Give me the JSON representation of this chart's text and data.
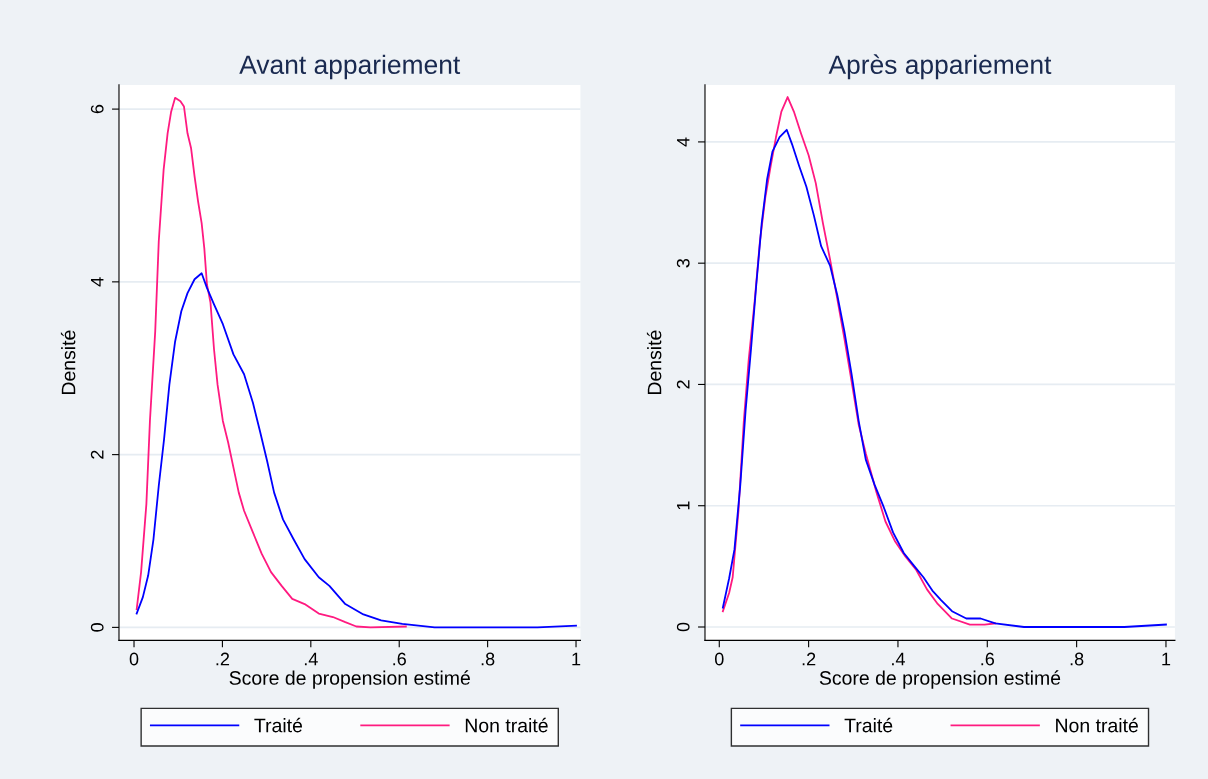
{
  "chart_data": [
    {
      "type": "line",
      "title": "Avant appariement",
      "xlabel": "Score de propension estimé",
      "ylabel": "Densité",
      "xlim": [
        -0.034,
        1.01
      ],
      "ylim": [
        -0.15,
        6.28
      ],
      "xticks": [
        0,
        {
          "value": 0.2,
          "label": ".2"
        },
        {
          "value": 0.4,
          "label": ".4"
        },
        {
          "value": 0.6,
          "label": ".6"
        },
        {
          "value": 0.8,
          "label": ".8"
        },
        1
      ],
      "yticks": [
        0,
        2,
        4,
        6
      ],
      "grid": "y",
      "legend": "bottom",
      "line_style": "solid",
      "marker": "none",
      "series": [
        {
          "name": "Traité",
          "color": "#0000ff",
          "x": [
            0.006,
            0.02,
            0.032,
            0.044,
            0.056,
            0.068,
            0.08,
            0.093,
            0.107,
            0.121,
            0.137,
            0.153,
            0.165,
            0.181,
            0.201,
            0.225,
            0.249,
            0.269,
            0.285,
            0.301,
            0.317,
            0.337,
            0.361,
            0.386,
            0.418,
            0.442,
            0.478,
            0.519,
            0.559,
            0.607,
            0.68,
            0.808,
            0.913,
            1.0
          ],
          "values": [
            0.16,
            0.35,
            0.6,
            1.02,
            1.64,
            2.18,
            2.81,
            3.31,
            3.66,
            3.87,
            4.03,
            4.1,
            3.93,
            3.74,
            3.51,
            3.16,
            2.93,
            2.6,
            2.27,
            1.93,
            1.56,
            1.25,
            1.02,
            0.79,
            0.58,
            0.48,
            0.27,
            0.15,
            0.08,
            0.04,
            0,
            0,
            0,
            0.02
          ]
        },
        {
          "name": "Non traité",
          "color": "#ff1a80",
          "x": [
            0.006,
            0.016,
            0.028,
            0.036,
            0.048,
            0.056,
            0.067,
            0.076,
            0.084,
            0.093,
            0.105,
            0.113,
            0.121,
            0.129,
            0.137,
            0.145,
            0.153,
            0.159,
            0.165,
            0.173,
            0.181,
            0.189,
            0.201,
            0.213,
            0.225,
            0.237,
            0.249,
            0.269,
            0.289,
            0.31,
            0.334,
            0.358,
            0.386,
            0.418,
            0.45,
            0.478,
            0.503,
            0.535,
            0.615
          ],
          "values": [
            0.21,
            0.64,
            1.43,
            2.39,
            3.43,
            4.47,
            5.3,
            5.72,
            5.97,
            6.13,
            6.09,
            6.03,
            5.72,
            5.55,
            5.22,
            4.93,
            4.68,
            4.39,
            3.97,
            3.76,
            3.22,
            2.81,
            2.39,
            2.14,
            1.85,
            1.56,
            1.35,
            1.1,
            0.85,
            0.64,
            0.48,
            0.33,
            0.27,
            0.16,
            0.12,
            0.06,
            0.01,
            0,
            0.01
          ]
        }
      ]
    },
    {
      "type": "line",
      "title": "Après appariement",
      "xlabel": "Score de propension estimé",
      "ylabel": "Densité",
      "xlim": [
        -0.032,
        1.02
      ],
      "ylim": [
        -0.11,
        4.47
      ],
      "xticks": [
        0,
        {
          "value": 0.2,
          "label": ".2"
        },
        {
          "value": 0.4,
          "label": ".4"
        },
        {
          "value": 0.6,
          "label": ".6"
        },
        {
          "value": 0.8,
          "label": ".8"
        },
        1
      ],
      "yticks": [
        0,
        1,
        2,
        3,
        4
      ],
      "grid": "y",
      "legend": "bottom",
      "line_style": "solid",
      "marker": "none",
      "series": [
        {
          "name": "Traité",
          "color": "#0000ff",
          "x": [
            0.008,
            0.022,
            0.034,
            0.047,
            0.059,
            0.071,
            0.083,
            0.095,
            0.107,
            0.119,
            0.135,
            0.151,
            0.163,
            0.179,
            0.195,
            0.212,
            0.228,
            0.248,
            0.264,
            0.28,
            0.296,
            0.312,
            0.328,
            0.348,
            0.368,
            0.389,
            0.413,
            0.437,
            0.457,
            0.477,
            0.497,
            0.521,
            0.553,
            0.585,
            0.618,
            0.682,
            0.819,
            0.907,
            1.0
          ],
          "values": [
            0.16,
            0.4,
            0.64,
            1.17,
            1.79,
            2.29,
            2.83,
            3.33,
            3.69,
            3.92,
            4.04,
            4.1,
            3.98,
            3.8,
            3.63,
            3.39,
            3.14,
            2.98,
            2.74,
            2.44,
            2.09,
            1.7,
            1.38,
            1.17,
            0.99,
            0.78,
            0.61,
            0.5,
            0.41,
            0.3,
            0.22,
            0.13,
            0.07,
            0.07,
            0.03,
            0,
            0,
            0,
            0.02
          ]
        },
        {
          "name": "Non traité",
          "color": "#ff1a80",
          "x": [
            0.008,
            0.022,
            0.03,
            0.043,
            0.055,
            0.066,
            0.079,
            0.091,
            0.103,
            0.115,
            0.127,
            0.139,
            0.153,
            0.167,
            0.183,
            0.2,
            0.216,
            0.232,
            0.248,
            0.264,
            0.28,
            0.296,
            0.312,
            0.328,
            0.352,
            0.372,
            0.393,
            0.417,
            0.441,
            0.465,
            0.489,
            0.521,
            0.561,
            0.594,
            0.618
          ],
          "values": [
            0.13,
            0.28,
            0.41,
            0.96,
            1.7,
            2.21,
            2.68,
            3.18,
            3.54,
            3.8,
            4.04,
            4.25,
            4.37,
            4.25,
            4.07,
            3.89,
            3.66,
            3.33,
            3.03,
            2.71,
            2.38,
            2.03,
            1.67,
            1.43,
            1.11,
            0.87,
            0.71,
            0.58,
            0.47,
            0.31,
            0.19,
            0.07,
            0.02,
            0.02,
            0.03
          ]
        }
      ]
    }
  ]
}
